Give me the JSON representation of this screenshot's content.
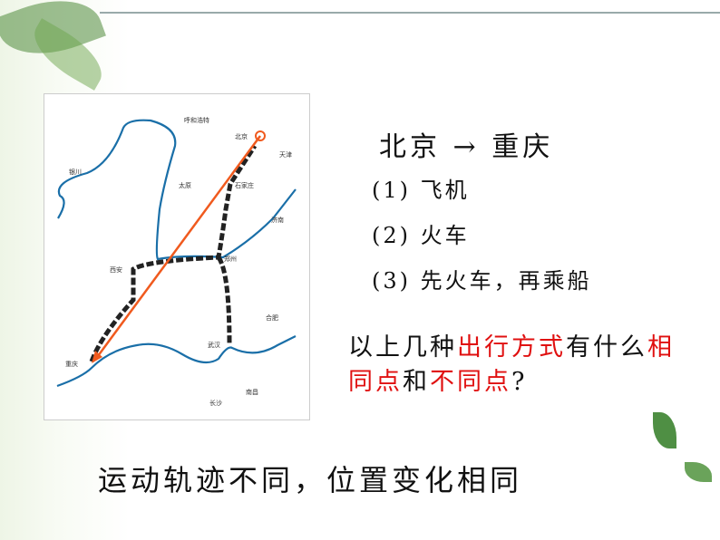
{
  "map": {
    "cities": [
      "呼和浩特",
      "北京",
      "天津",
      "银川",
      "太原",
      "石家庄",
      "济南",
      "西安",
      "郑州",
      "合肥",
      "武汉",
      "重庆",
      "南昌",
      "长沙"
    ]
  },
  "title": "北京 → 重庆",
  "options": [
    "(1) 飞机",
    "(2) 火车",
    "(3) 先火车，再乘船"
  ],
  "question": {
    "parts": [
      {
        "text": "以上几种",
        "red": false
      },
      {
        "text": "出行方式",
        "red": true
      },
      {
        "text": "有什么",
        "red": false
      },
      {
        "text": "相同点",
        "red": true
      },
      {
        "text": "和",
        "red": false
      },
      {
        "text": "不同点",
        "red": true
      },
      {
        "text": "?",
        "red": false
      }
    ]
  },
  "answer": "运动轨迹不同，位置变化相同",
  "colors": {
    "accent_red": "#e01010",
    "river": "#1a6fa8",
    "flight": "#f05a1e"
  }
}
